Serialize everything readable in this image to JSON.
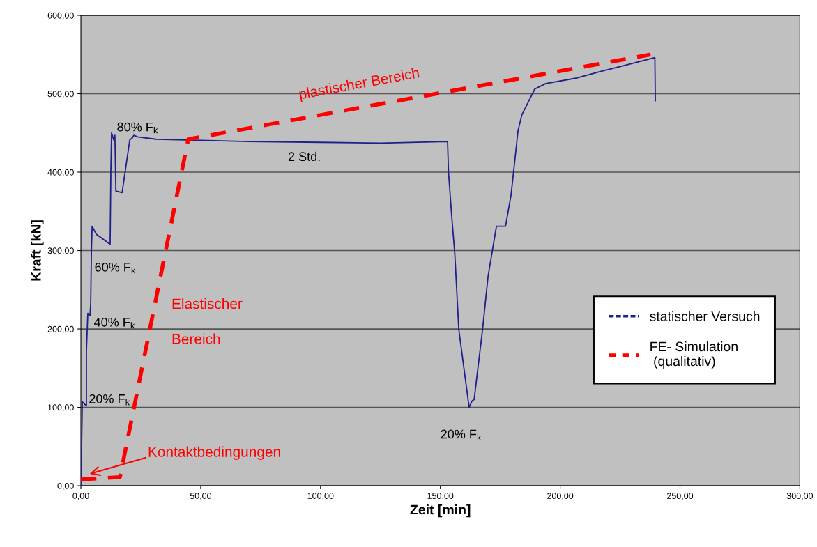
{
  "chart_data": {
    "type": "line",
    "xlabel": "Zeit [min]",
    "ylabel": "Kraft [kN]",
    "xlim": [
      0,
      300
    ],
    "ylim": [
      0,
      600
    ],
    "xticks": [
      {
        "value": 0,
        "label": "0,00"
      },
      {
        "value": 50,
        "label": "50,00"
      },
      {
        "value": 100,
        "label": "100,00"
      },
      {
        "value": 150,
        "label": "150,00"
      },
      {
        "value": 200,
        "label": "200,00"
      },
      {
        "value": 250,
        "label": "250,00"
      },
      {
        "value": 300,
        "label": "300,00"
      }
    ],
    "yticks": [
      {
        "value": 0,
        "label": "0,00"
      },
      {
        "value": 100,
        "label": "100,00"
      },
      {
        "value": 200,
        "label": "200,00"
      },
      {
        "value": 300,
        "label": "300,00"
      },
      {
        "value": 400,
        "label": "400,00"
      },
      {
        "value": 500,
        "label": "500,00"
      },
      {
        "value": 600,
        "label": "600,00"
      }
    ],
    "grid": "y",
    "legend": "right",
    "series": [
      {
        "name": "statischer Versuch",
        "color": "#1f1f8c",
        "line_style": "solid",
        "x": [
          0.1,
          0.35,
          0.6,
          2.3,
          2.3,
          2.9,
          3.8,
          4.1,
          4.4,
          4.7,
          6.4,
          12.2,
          12.5,
          12.8,
          13.7,
          14.2,
          14.6,
          17.2,
          20.4,
          21.5,
          22.1,
          23.6,
          31.4,
          44.5,
          70,
          100,
          125,
          153,
          153.4,
          154.8,
          156,
          157.7,
          162,
          163.2,
          164.1,
          167.6,
          169.9,
          173.4,
          177.2,
          179.5,
          181.6,
          182.4,
          184,
          189.4,
          194,
          206.9,
          216.5,
          228,
          239.5,
          239.7
        ],
        "values": [
          0,
          60,
          107,
          102,
          171,
          220,
          217,
          232,
          300,
          331,
          321,
          308,
          401,
          450,
          441,
          447,
          376,
          374,
          441,
          444,
          447,
          445,
          442,
          441,
          439,
          438,
          437,
          439,
          400,
          341,
          297,
          199,
          100,
          108,
          110,
          199,
          267,
          331,
          331,
          371,
          430,
          453,
          473,
          506,
          513,
          520,
          528,
          537,
          546,
          491
        ]
      },
      {
        "name": "FE- Simulation\n (qualitativ)",
        "color": "#ff0000",
        "line_style": "dashed",
        "x": [
          0,
          16.3,
          44.8,
          237.7
        ],
        "values": [
          8,
          11,
          442,
          550
        ]
      }
    ],
    "annotations": [
      "80% F$_{k}$",
      "60% F$_{k}$",
      "40% F$_{k}$",
      "20% F$_{k}$",
      "2 Std.",
      "20% F$_{k}$",
      "Kontaktbedingungen",
      "Elastischer",
      "Bereich",
      "plastischer Bereich"
    ]
  }
}
